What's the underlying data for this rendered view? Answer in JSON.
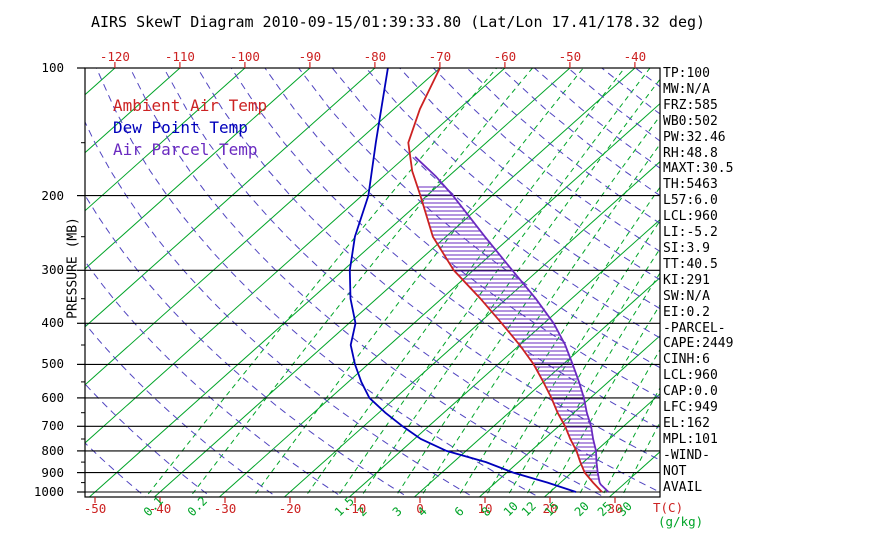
{
  "title": "AIRS SkewT Diagram 2010-09-15/01:39:33.80 (Lat/Lon 17.41/178.32 deg)",
  "colors": {
    "temp": "#cc2222",
    "dewpoint": "#0000bb",
    "parcel": "#6a2ac0",
    "adiabat": "#5044c0",
    "green": "#00a428",
    "label_red": "#cc2222",
    "axis": "#000000"
  },
  "legend": {
    "items": [
      {
        "label": "Ambient Air Temp",
        "key": "temp"
      },
      {
        "label": "Dew Point Temp",
        "key": "dewpoint"
      },
      {
        "label": "Air Parcel Temp",
        "key": "parcel"
      }
    ]
  },
  "stats_panel": {
    "lines": [
      "TP:100",
      "MW:N/A",
      "FRZ:585",
      "WB0:502",
      "PW:32.46",
      "RH:48.8",
      "MAXT:30.5",
      "TH:5463",
      "L57:6.0",
      "LCL:960",
      "LI:-5.2",
      "SI:3.9",
      "TT:40.5",
      "KI:291",
      "SW:N/A",
      "EI:0.2",
      "-PARCEL-",
      "CAPE:2449",
      "CINH:6",
      "LCL:960",
      "CAP:0.0",
      "LFC:949",
      "EL:162",
      "MPL:101",
      "-WIND-",
      "NOT",
      "AVAIL"
    ]
  },
  "chart_data": {
    "type": "line",
    "title": "AIRS SkewT Diagram 2010-09-15/01:39:33.80 (Lat/Lon 17.41/178.32 deg)",
    "ylabel": "PRESSURE (MB)",
    "x_unit_label": "T(C)",
    "w_unit_label": "(g/kg)",
    "y_scale": "log",
    "y_range_hpa": [
      100,
      1000
    ],
    "pressure_ticks": [
      100,
      200,
      300,
      400,
      500,
      600,
      700,
      800,
      900,
      1000
    ],
    "pressure_minor_ticks": [
      150,
      250,
      350,
      450,
      550,
      650,
      750,
      850,
      950
    ],
    "top_temp_ticks": [
      -120,
      -110,
      -100,
      -90,
      -80,
      -70,
      -60,
      -50,
      -40
    ],
    "bottom_temp_ticks": [
      -50,
      -40,
      -30,
      -20,
      -10,
      0,
      10,
      20,
      30
    ],
    "isotherms_c": {
      "min": -130,
      "max": 40,
      "step": 10
    },
    "dry_adiabats_k": {
      "min": 220,
      "max": 460,
      "step": 10
    },
    "mixing_ratio_lines": [
      0.1,
      0.2,
      0.5,
      1,
      1.5,
      2,
      3,
      4,
      6,
      8,
      10,
      12,
      15,
      20,
      25,
      30
    ],
    "mixing_ratio_labels": [
      0.1,
      0.2,
      1.5,
      2,
      3,
      4,
      6,
      8,
      10,
      12,
      15,
      20,
      25,
      30
    ],
    "series": [
      {
        "name": "Ambient Air Temp",
        "color_key": "temp",
        "points_p_t": [
          [
            1000,
            28
          ],
          [
            950,
            25
          ],
          [
            900,
            22
          ],
          [
            850,
            19.5
          ],
          [
            800,
            17
          ],
          [
            750,
            14
          ],
          [
            700,
            11
          ],
          [
            650,
            7.5
          ],
          [
            600,
            4
          ],
          [
            550,
            0
          ],
          [
            500,
            -4.5
          ],
          [
            450,
            -10
          ],
          [
            400,
            -16.5
          ],
          [
            350,
            -24
          ],
          [
            300,
            -33
          ],
          [
            250,
            -42
          ],
          [
            200,
            -51
          ],
          [
            175,
            -56.5
          ],
          [
            150,
            -62
          ],
          [
            125,
            -66
          ],
          [
            100,
            -70
          ]
        ]
      },
      {
        "name": "Dew Point Temp",
        "color_key": "dewpoint",
        "points_p_t": [
          [
            1000,
            24
          ],
          [
            950,
            18
          ],
          [
            900,
            11
          ],
          [
            850,
            5
          ],
          [
            800,
            -3
          ],
          [
            750,
            -9
          ],
          [
            700,
            -14
          ],
          [
            650,
            -19
          ],
          [
            600,
            -24
          ],
          [
            550,
            -28
          ],
          [
            500,
            -32
          ],
          [
            450,
            -36
          ],
          [
            400,
            -39
          ],
          [
            350,
            -44
          ],
          [
            300,
            -49
          ],
          [
            250,
            -54
          ],
          [
            200,
            -59
          ],
          [
            150,
            -67
          ],
          [
            100,
            -78
          ]
        ]
      },
      {
        "name": "Air Parcel Temp",
        "color_key": "parcel",
        "points_p_t": [
          [
            1000,
            29
          ],
          [
            960,
            26.5
          ],
          [
            950,
            26
          ],
          [
            900,
            24
          ],
          [
            850,
            22
          ],
          [
            800,
            20
          ],
          [
            750,
            17.5
          ],
          [
            700,
            15
          ],
          [
            650,
            12
          ],
          [
            600,
            9
          ],
          [
            550,
            5.5
          ],
          [
            500,
            1.5
          ],
          [
            450,
            -3
          ],
          [
            400,
            -8.5
          ],
          [
            350,
            -15.5
          ],
          [
            300,
            -24
          ],
          [
            250,
            -34
          ],
          [
            200,
            -46
          ],
          [
            180,
            -52
          ],
          [
            162,
            -58.5
          ]
        ]
      }
    ],
    "cape_hatch_hpa": [
      190,
      940
    ]
  }
}
